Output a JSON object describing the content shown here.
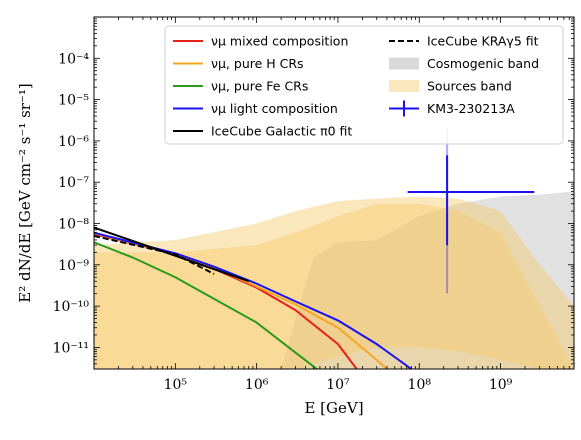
{
  "chart_data": {
    "type": "line",
    "xlabel": "E [GeV]",
    "ylabel": "E² dN/dE [GeV cm⁻² s⁻¹ sr⁻¹]",
    "xscale": "log",
    "yscale": "log",
    "xlim": [
      10000,
      8000000000
    ],
    "ylim": [
      3e-12,
      0.001
    ],
    "grid": false,
    "legend_position": "top",
    "x_ticks": [
      {
        "value": 100000,
        "label": "10⁵"
      },
      {
        "value": 1000000,
        "label": "10⁶"
      },
      {
        "value": 10000000,
        "label": "10⁷"
      },
      {
        "value": 100000000,
        "label": "10⁸"
      },
      {
        "value": 1000000000,
        "label": "10⁹"
      }
    ],
    "y_ticks": [
      {
        "value": 1e-11,
        "label": "10⁻¹¹"
      },
      {
        "value": 1e-10,
        "label": "10⁻¹⁰"
      },
      {
        "value": 1e-09,
        "label": "10⁻⁹"
      },
      {
        "value": 1e-08,
        "label": "10⁻⁸"
      },
      {
        "value": 1e-07,
        "label": "10⁻⁷"
      },
      {
        "value": 1e-06,
        "label": "10⁻⁶"
      },
      {
        "value": 1e-05,
        "label": "10⁻⁵"
      },
      {
        "value": 0.0001,
        "label": "10⁻⁴"
      }
    ],
    "series": [
      {
        "name": "νμ mixed composition",
        "color": "#e8201a",
        "style": "solid",
        "x": [
          10000,
          100000,
          300000,
          1000000,
          3000000,
          10000000,
          17000000
        ],
        "y": [
          5.5e-09,
          1.8e-09,
          8e-10,
          2.8e-10,
          8e-11,
          1.2e-11,
          3e-12
        ]
      },
      {
        "name": "νμ, pure H CRs",
        "color": "#f5a623",
        "style": "solid",
        "x": [
          10000,
          100000,
          300000,
          1000000,
          3000000,
          10000000,
          30000000,
          40000000
        ],
        "y": [
          5.8e-09,
          1.8e-09,
          8.5e-10,
          3e-10,
          1.1e-10,
          3e-11,
          5e-12,
          3e-12
        ]
      },
      {
        "name": "νμ, pure Fe CRs",
        "color": "#2a9a1a",
        "style": "solid",
        "x": [
          10000,
          30000,
          100000,
          300000,
          1000000,
          3000000,
          5500000
        ],
        "y": [
          3.5e-09,
          1.5e-09,
          5e-10,
          1.5e-10,
          4e-11,
          7.5e-12,
          3e-12
        ]
      },
      {
        "name": "νμ light composition",
        "color": "#1a12f0",
        "style": "solid",
        "x": [
          10000,
          100000,
          300000,
          1000000,
          3000000,
          10000000,
          30000000,
          80000000
        ],
        "y": [
          6e-09,
          1.9e-09,
          9e-10,
          3.5e-10,
          1.3e-10,
          4.5e-11,
          1.2e-11,
          3e-12
        ]
      },
      {
        "name": "IceCube Galactic π0 fit",
        "color": "#000000",
        "style": "solid",
        "x": [
          10000,
          800000
        ],
        "y": [
          8e-09,
          4e-10
        ]
      },
      {
        "name": "IceCube KRAγ5 fit",
        "color": "#000000",
        "style": "dashed",
        "x": [
          10000,
          100000,
          300000
        ],
        "y": [
          5e-09,
          1.8e-09,
          6e-10
        ]
      }
    ],
    "bands": [
      {
        "name": "Cosmogenic band",
        "color": "#bdbdbd",
        "opacity": 0.45,
        "x": [
          2000000,
          5000000,
          10000000,
          30000000,
          100000000,
          300000000,
          1000000000,
          3000000000,
          8000000000
        ],
        "upper": [
          3e-12,
          1.5e-09,
          3.5e-09,
          4e-09,
          1.5e-08,
          3e-08,
          4.5e-08,
          5e-08,
          6e-08
        ],
        "lower": [
          3e-12,
          3e-12,
          3e-12,
          3e-12,
          3e-12,
          3e-12,
          3e-12,
          3e-12,
          3e-12
        ]
      },
      {
        "name": "Sources band",
        "color": "#f7c96a",
        "opacity": 0.45,
        "x": [
          10000,
          100000,
          1000000,
          3000000,
          10000000,
          30000000,
          100000000,
          300000000,
          1000000000,
          3000000000,
          8000000000
        ],
        "upper": [
          3e-09,
          4e-09,
          1e-08,
          2e-08,
          3.5e-08,
          4e-08,
          4.5e-08,
          4e-08,
          2e-08,
          1e-09,
          1e-10
        ],
        "lower": [
          3e-12,
          3e-12,
          3e-12,
          3e-12,
          6e-12,
          1e-11,
          1e-11,
          8e-12,
          5e-12,
          3e-12,
          3e-12
        ]
      },
      {
        "name": "",
        "color": "#f7c96a",
        "opacity": 0.45,
        "x": [
          10000,
          100000,
          1000000,
          3000000,
          10000000,
          30000000,
          100000000,
          300000000,
          1000000000,
          3000000000,
          8000000000
        ],
        "upper": [
          2e-09,
          2e-09,
          3e-09,
          6e-09,
          1.5e-08,
          3e-08,
          3e-08,
          2e-08,
          6e-09,
          1e-10,
          3e-12
        ],
        "lower": [
          3e-12,
          3e-12,
          3e-12,
          3e-12,
          3e-12,
          3e-12,
          3e-12,
          3e-12,
          3e-12,
          3e-12,
          3e-12
        ]
      }
    ],
    "points": [
      {
        "name": "KM3-230213A",
        "color": "#1a12f0",
        "x": 220000000,
        "y": 5.8e-08,
        "x_err": [
          72000000,
          2600000000
        ],
        "y_err_68": [
          3e-09,
          4.5e-07
        ],
        "y_err_90": [
          2e-10,
          2e-06
        ]
      }
    ],
    "legend": [
      {
        "label": "νμ mixed composition",
        "kind": "line",
        "color": "#e8201a"
      },
      {
        "label": "νμ, pure H CRs",
        "kind": "line",
        "color": "#f5a623"
      },
      {
        "label": "νμ, pure Fe CRs",
        "kind": "line",
        "color": "#2a9a1a"
      },
      {
        "label": "νμ light composition",
        "kind": "line",
        "color": "#1a12f0"
      },
      {
        "label": "IceCube Galactic π0 fit",
        "kind": "line",
        "color": "#000000"
      },
      {
        "label": "IceCube KRAγ5 fit",
        "kind": "dashed",
        "color": "#000000"
      },
      {
        "label": "Cosmogenic band",
        "kind": "patch",
        "color": "#d9d9d9"
      },
      {
        "label": "Sources band",
        "kind": "patch",
        "color": "#fbe6bd"
      },
      {
        "label": "KM3-230213A",
        "kind": "errorbar",
        "color": "#1a12f0"
      }
    ]
  }
}
